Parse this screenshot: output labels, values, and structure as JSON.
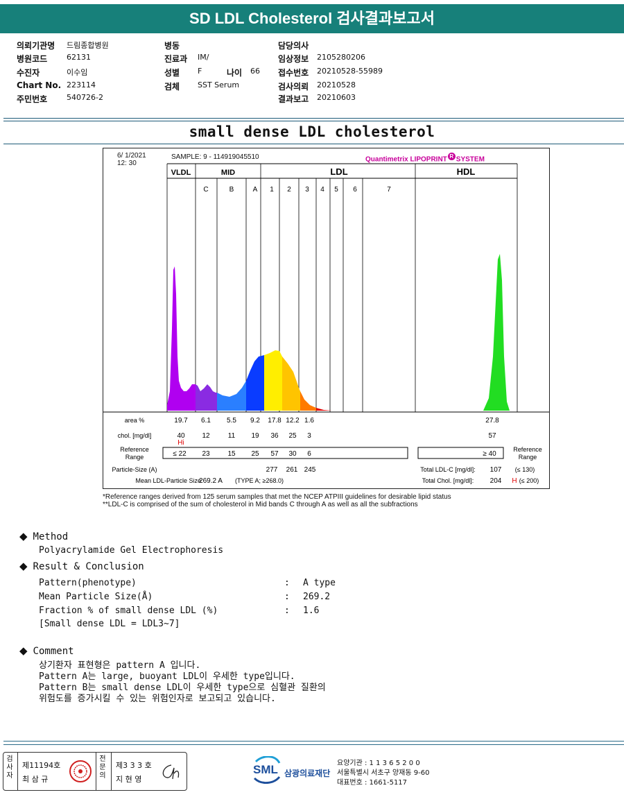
{
  "header": {
    "title": "SD LDL Cholesterol 검사결과보고서"
  },
  "info": {
    "col1": [
      {
        "label": "의뢰기관명",
        "value": "드림종합병원"
      },
      {
        "label": "병원코드",
        "value": "62131"
      },
      {
        "label": "수진자",
        "value": "이수임"
      },
      {
        "label": "Chart No.",
        "value": "223114"
      },
      {
        "label": "주민번호",
        "value": "540726-2"
      }
    ],
    "col2": [
      {
        "label": "병동",
        "value": ""
      },
      {
        "label": "진료과",
        "value": "IM/"
      },
      {
        "label": "성별",
        "value": "F"
      },
      {
        "label": "검체",
        "value": "SST Serum"
      }
    ],
    "age_label": "나이",
    "age_value": "66",
    "col3": [
      {
        "label": "담당의사",
        "value": ""
      },
      {
        "label": "임상정보",
        "value": "2105280206"
      },
      {
        "label": "접수번호",
        "value": "20210528-55989"
      },
      {
        "label": "검사의뢰",
        "value": "20210528"
      },
      {
        "label": "결과보고",
        "value": "20210603"
      }
    ]
  },
  "section_title": "small dense LDL cholesterol",
  "chart_data": {
    "type": "area",
    "title": "",
    "date": "6/ 1/2021",
    "time": "12: 30",
    "sample": "SAMPLE:     9 - 114919045510",
    "brand": "Quantimetrix LIPOPRINT",
    "brand_sup": "R",
    "brand_tail": "SYSTEM",
    "groups": [
      "VLDL",
      "MID",
      "LDL",
      "HDL"
    ],
    "bands": [
      "C",
      "B",
      "A",
      "1",
      "2",
      "3",
      "4",
      "5",
      "6",
      "7"
    ],
    "band_colors": {
      "VLDL": "#b000f0",
      "C": "#8a2be2",
      "B": "#2a7fff",
      "A": "#0a3cff",
      "1": "#ffee00",
      "2": "#ffc400",
      "3": "#ff7a00",
      "4": "#e00000",
      "HDL": "#22dd22"
    },
    "rows": {
      "area_label": "area %",
      "area": [
        "19.7",
        "6.1",
        "5.5",
        "9.2",
        "17.8",
        "12.2",
        "1.6"
      ],
      "area_hdl": "27.8",
      "chol_label": "chol. [mg/dl]",
      "chol": [
        "40",
        "12",
        "11",
        "19",
        "36",
        "25",
        "3"
      ],
      "chol_hdl": "57",
      "hi": "Hi",
      "ref_label_1": "Reference",
      "ref_label_2": "Range",
      "ref": [
        "≤ 22",
        "23",
        "15",
        "25",
        "57",
        "30",
        "6"
      ],
      "ref_hdl": "≥ 40",
      "particle_label": "Particle-Size (A)",
      "particle": [
        "277",
        "261",
        "245"
      ],
      "mean_label": "Mean LDL-Particle Size:",
      "mean_value": "269.2 A",
      "mean_type": "(TYPE A; ≥268.0)",
      "total_ldl_label": "Total LDL-C [mg/dl]:",
      "total_ldl": "107",
      "total_ldl_ref": "(≤ 130)",
      "total_chol_label": "Total Chol. [mg/dl]:",
      "total_chol": "204",
      "total_chol_flag": "H",
      "total_chol_ref": "(≤ 200)"
    }
  },
  "notes": [
    "*Reference ranges derived from 125 serum samples that met the NCEP ATPIII guidelines for desirable lipid status",
    "**LDL-C is comprised of the sum of cholesterol in Mid bands C through A as well as all the subfractions"
  ],
  "method": {
    "title": "Method",
    "text": "Polyacrylamide Gel Electrophoresis"
  },
  "result": {
    "title": "Result & Conclusion",
    "items": [
      {
        "label": "Pattern(phenotype)",
        "value": "A type"
      },
      {
        "label": "Mean Particle Size(Å)",
        "value": "269.2"
      },
      {
        "label": "Fraction % of small dense LDL (%)",
        "value": "1.6"
      }
    ],
    "extra": "[Small dense LDL = LDL3~7]"
  },
  "comment": {
    "title": "Comment",
    "lines": [
      "상기환자 표현형은 pattern A 입니다.",
      "Pattern A는 large, buoyant LDL이 우세한 type입니다.",
      "Pattern B는 small dense LDL이 우세한 type으로 심혈관 질환의",
      "위험도를 증가시킬 수 있는 위험인자로 보고되고 있습니다."
    ]
  },
  "footer": {
    "inspector_label": "검사자",
    "inspector_no": "제11194호",
    "inspector_name": "최 삼 규",
    "specialist_label": "전문의",
    "specialist_no": "제3 3 3 호",
    "specialist_name": "지 현 영",
    "logo_text": "SML",
    "org": "삼광의료재단",
    "lines": [
      "요양기관 : 1 1 3 6 5 2 0 0",
      "서울특별시 서초구 양재동 9-60",
      "대표번호 : 1661-5117"
    ]
  }
}
